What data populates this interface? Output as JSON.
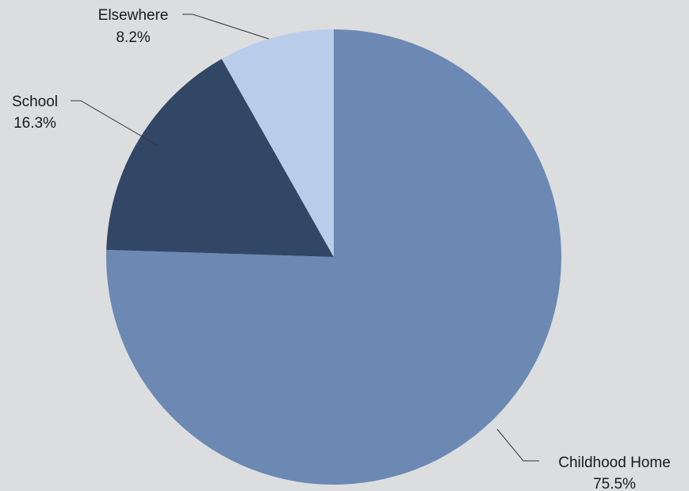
{
  "chart_data": {
    "type": "pie",
    "title": "",
    "slices": [
      {
        "label": "Childhood Home",
        "value": 75.5,
        "display": "75.5%",
        "color": "#6b89b2"
      },
      {
        "label": "School",
        "value": 16.3,
        "display": "16.3%",
        "color": "#324766"
      },
      {
        "label": "Elsewhere",
        "value": 8.2,
        "display": "8.2%",
        "color": "#b9cdea"
      }
    ],
    "start": "12 o'clock",
    "direction": "clockwise",
    "legend": "none",
    "labels": "outside with leader lines"
  },
  "colors": {
    "background": "#dcdddf",
    "leader_line": "#333333",
    "label_text": "#1a1a1a"
  }
}
